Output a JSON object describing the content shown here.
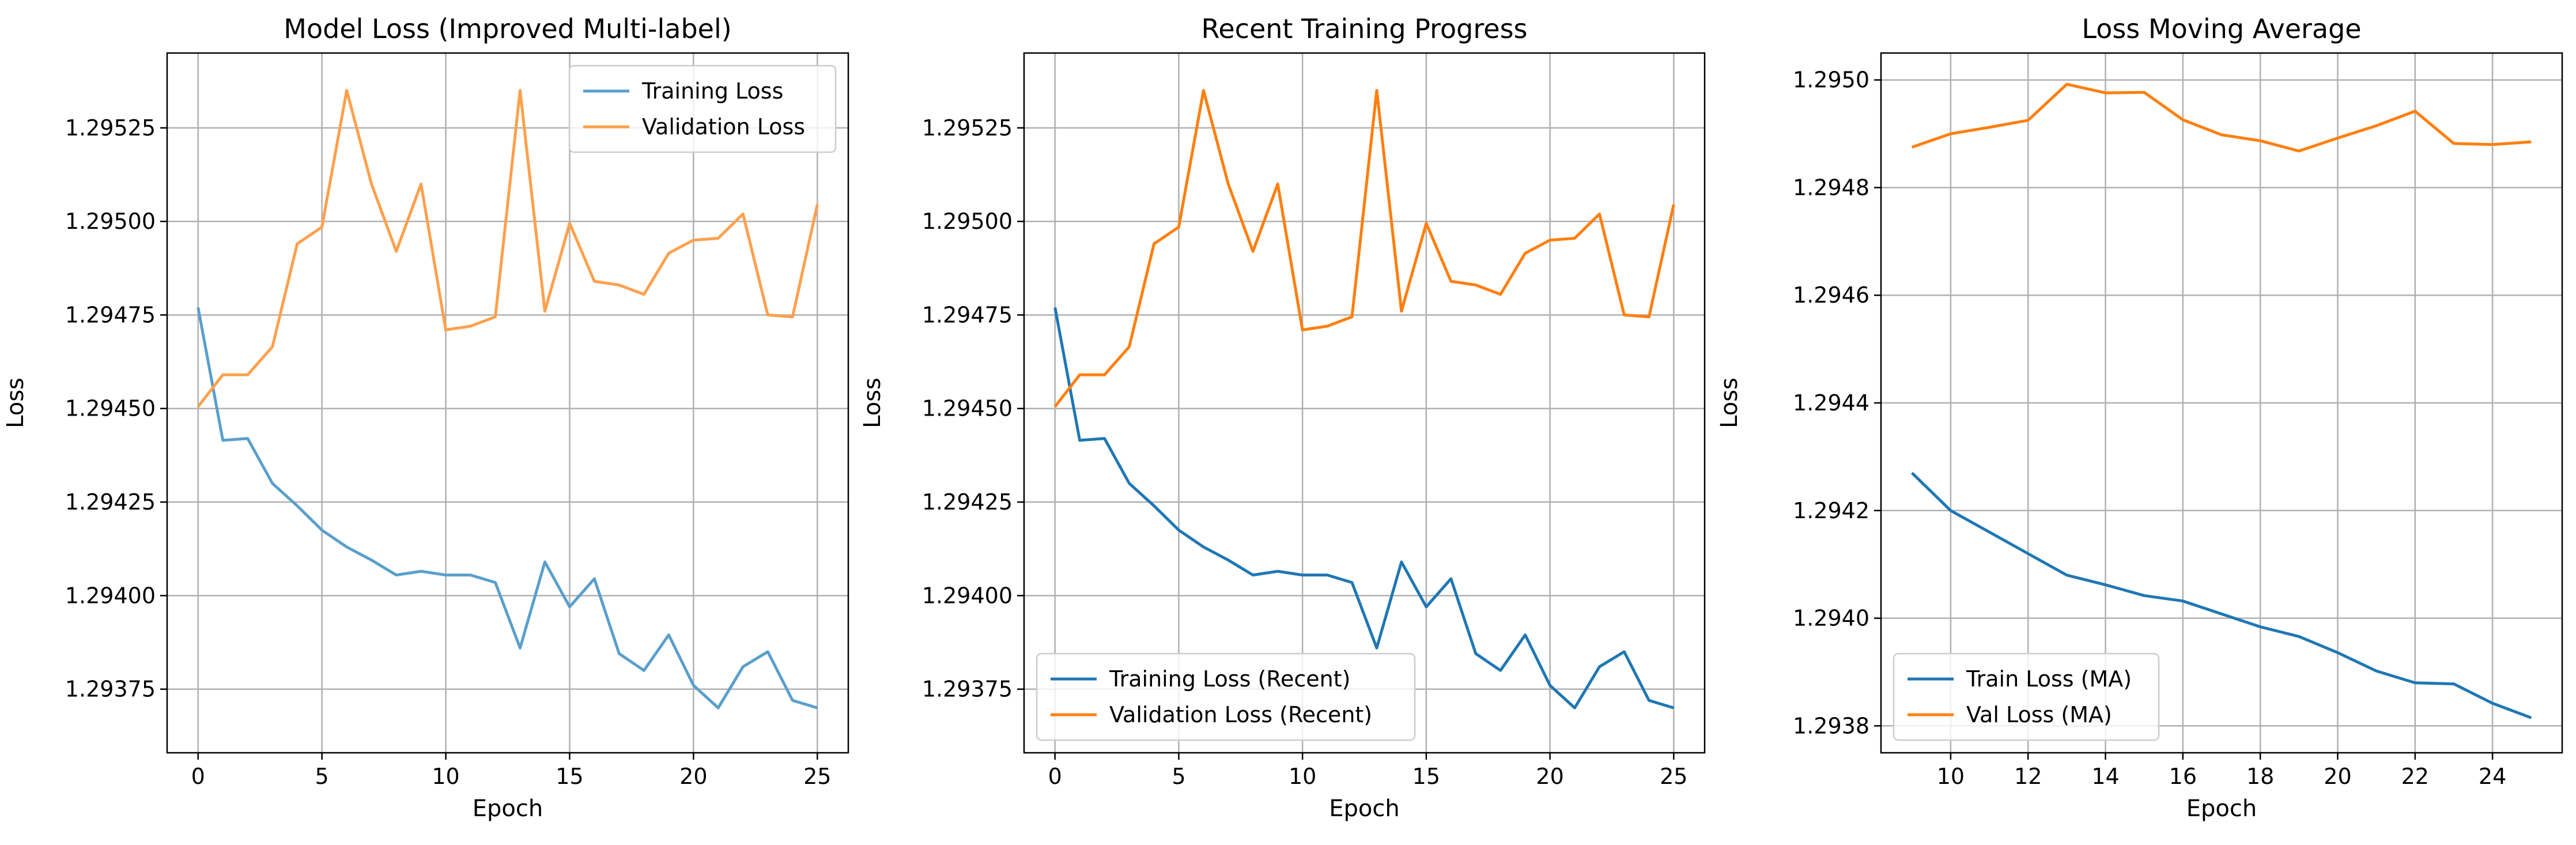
{
  "chart_data": [
    {
      "type": "line",
      "title": "Model Loss (Improved Multi-label)",
      "xlabel": "Epoch",
      "ylabel": "Loss",
      "xlim": [
        -1.25,
        26.25
      ],
      "ylim": [
        1.29358,
        1.29545
      ],
      "xticks": [
        0,
        5,
        10,
        15,
        20,
        25
      ],
      "xtick_labels": [
        "0",
        "5",
        "10",
        "15",
        "20",
        "25"
      ],
      "yticks": [
        1.29375,
        1.294,
        1.29425,
        1.2945,
        1.29475,
        1.295,
        1.29525
      ],
      "ytick_labels": [
        "1.29375",
        "1.29400",
        "1.29425",
        "1.29450",
        "1.29475",
        "1.29500",
        "1.29525"
      ],
      "grid": true,
      "legend_position": "upper-right",
      "series": [
        {
          "name": "Training Loss",
          "color": "#5a9fcb",
          "x": [
            0,
            1,
            2,
            3,
            4,
            5,
            6,
            7,
            8,
            9,
            10,
            11,
            12,
            13,
            14,
            15,
            16,
            17,
            18,
            19,
            20,
            21,
            22,
            23,
            24,
            25
          ],
          "y": [
            1.29477,
            1.294415,
            1.29442,
            1.2943,
            1.29424,
            1.294175,
            1.29413,
            1.294095,
            1.294055,
            1.294065,
            1.294055,
            1.294055,
            1.294035,
            1.29386,
            1.29409,
            1.29397,
            1.294045,
            1.293845,
            1.2938,
            1.293895,
            1.29376,
            1.2937,
            1.29381,
            1.29385,
            1.29372,
            1.2937
          ]
        },
        {
          "name": "Validation Loss",
          "color": "#ffa04d",
          "x": [
            0,
            1,
            2,
            3,
            4,
            5,
            6,
            7,
            8,
            9,
            10,
            11,
            12,
            13,
            14,
            15,
            16,
            17,
            18,
            19,
            20,
            21,
            22,
            23,
            24,
            25
          ],
          "y": [
            1.294505,
            1.29459,
            1.29459,
            1.294665,
            1.29494,
            1.294985,
            1.29535,
            1.2951,
            1.29492,
            1.2951,
            1.29471,
            1.29472,
            1.294745,
            1.29535,
            1.29476,
            1.294995,
            1.29484,
            1.29483,
            1.294805,
            1.294915,
            1.29495,
            1.294955,
            1.29502,
            1.29475,
            1.294745,
            1.295045
          ]
        }
      ]
    },
    {
      "type": "line",
      "title": "Recent Training Progress",
      "xlabel": "Epoch",
      "ylabel": "Loss",
      "xlim": [
        -1.25,
        26.25
      ],
      "ylim": [
        1.29358,
        1.29545
      ],
      "xticks": [
        0,
        5,
        10,
        15,
        20,
        25
      ],
      "xtick_labels": [
        "0",
        "5",
        "10",
        "15",
        "20",
        "25"
      ],
      "yticks": [
        1.29375,
        1.294,
        1.29425,
        1.2945,
        1.29475,
        1.295,
        1.29525
      ],
      "ytick_labels": [
        "1.29375",
        "1.29400",
        "1.29425",
        "1.29450",
        "1.29475",
        "1.29500",
        "1.29525"
      ],
      "grid": true,
      "legend_position": "lower-left",
      "series": [
        {
          "name": "Training Loss (Recent)",
          "color": "#1f77b4",
          "x": [
            0,
            1,
            2,
            3,
            4,
            5,
            6,
            7,
            8,
            9,
            10,
            11,
            12,
            13,
            14,
            15,
            16,
            17,
            18,
            19,
            20,
            21,
            22,
            23,
            24,
            25
          ],
          "y": [
            1.29477,
            1.294415,
            1.29442,
            1.2943,
            1.29424,
            1.294175,
            1.29413,
            1.294095,
            1.294055,
            1.294065,
            1.294055,
            1.294055,
            1.294035,
            1.29386,
            1.29409,
            1.29397,
            1.294045,
            1.293845,
            1.2938,
            1.293895,
            1.29376,
            1.2937,
            1.29381,
            1.29385,
            1.29372,
            1.2937
          ]
        },
        {
          "name": "Validation Loss (Recent)",
          "color": "#ff7f0e",
          "x": [
            0,
            1,
            2,
            3,
            4,
            5,
            6,
            7,
            8,
            9,
            10,
            11,
            12,
            13,
            14,
            15,
            16,
            17,
            18,
            19,
            20,
            21,
            22,
            23,
            24,
            25
          ],
          "y": [
            1.294505,
            1.29459,
            1.29459,
            1.294665,
            1.29494,
            1.294985,
            1.29535,
            1.2951,
            1.29492,
            1.2951,
            1.29471,
            1.29472,
            1.294745,
            1.29535,
            1.29476,
            1.294995,
            1.29484,
            1.29483,
            1.294805,
            1.294915,
            1.29495,
            1.294955,
            1.29502,
            1.29475,
            1.294745,
            1.295045
          ]
        }
      ]
    },
    {
      "type": "line",
      "title": "Loss Moving Average",
      "xlabel": "Epoch",
      "ylabel": "Loss",
      "xlim": [
        8.2,
        25.8
      ],
      "ylim": [
        1.29375,
        1.29505
      ],
      "xticks": [
        10,
        12,
        14,
        16,
        18,
        20,
        22,
        24
      ],
      "xtick_labels": [
        "10",
        "12",
        "14",
        "16",
        "18",
        "20",
        "22",
        "24"
      ],
      "yticks": [
        1.2938,
        1.294,
        1.2942,
        1.2944,
        1.2946,
        1.2948,
        1.295
      ],
      "ytick_labels": [
        "1.2938",
        "1.2940",
        "1.2942",
        "1.2944",
        "1.2946",
        "1.2948",
        "1.2950"
      ],
      "grid": true,
      "legend_position": "lower-left",
      "series": [
        {
          "name": "Train Loss (MA)",
          "color": "#1f77b4",
          "x": [
            9,
            10,
            11,
            12,
            13,
            14,
            15,
            16,
            17,
            18,
            19,
            20,
            21,
            22,
            23,
            24,
            25
          ],
          "y": [
            1.29427,
            1.2942,
            1.29416,
            1.29412,
            1.29408,
            1.294062,
            1.294042,
            1.294032,
            1.294008,
            1.293984,
            1.293966,
            1.293936,
            1.293902,
            1.29388,
            1.293878,
            1.293842,
            1.293815
          ]
        },
        {
          "name": "Val Loss (MA)",
          "color": "#ff7f0e",
          "x": [
            9,
            10,
            11,
            12,
            13,
            14,
            15,
            16,
            17,
            18,
            19,
            20,
            21,
            22,
            23,
            24,
            25
          ],
          "y": [
            1.294875,
            1.2949,
            1.294912,
            1.294925,
            1.294992,
            1.294976,
            1.294977,
            1.294926,
            1.294898,
            1.294887,
            1.294868,
            1.294892,
            1.294915,
            1.294942,
            1.294882,
            1.29488,
            1.294885
          ]
        }
      ]
    }
  ]
}
